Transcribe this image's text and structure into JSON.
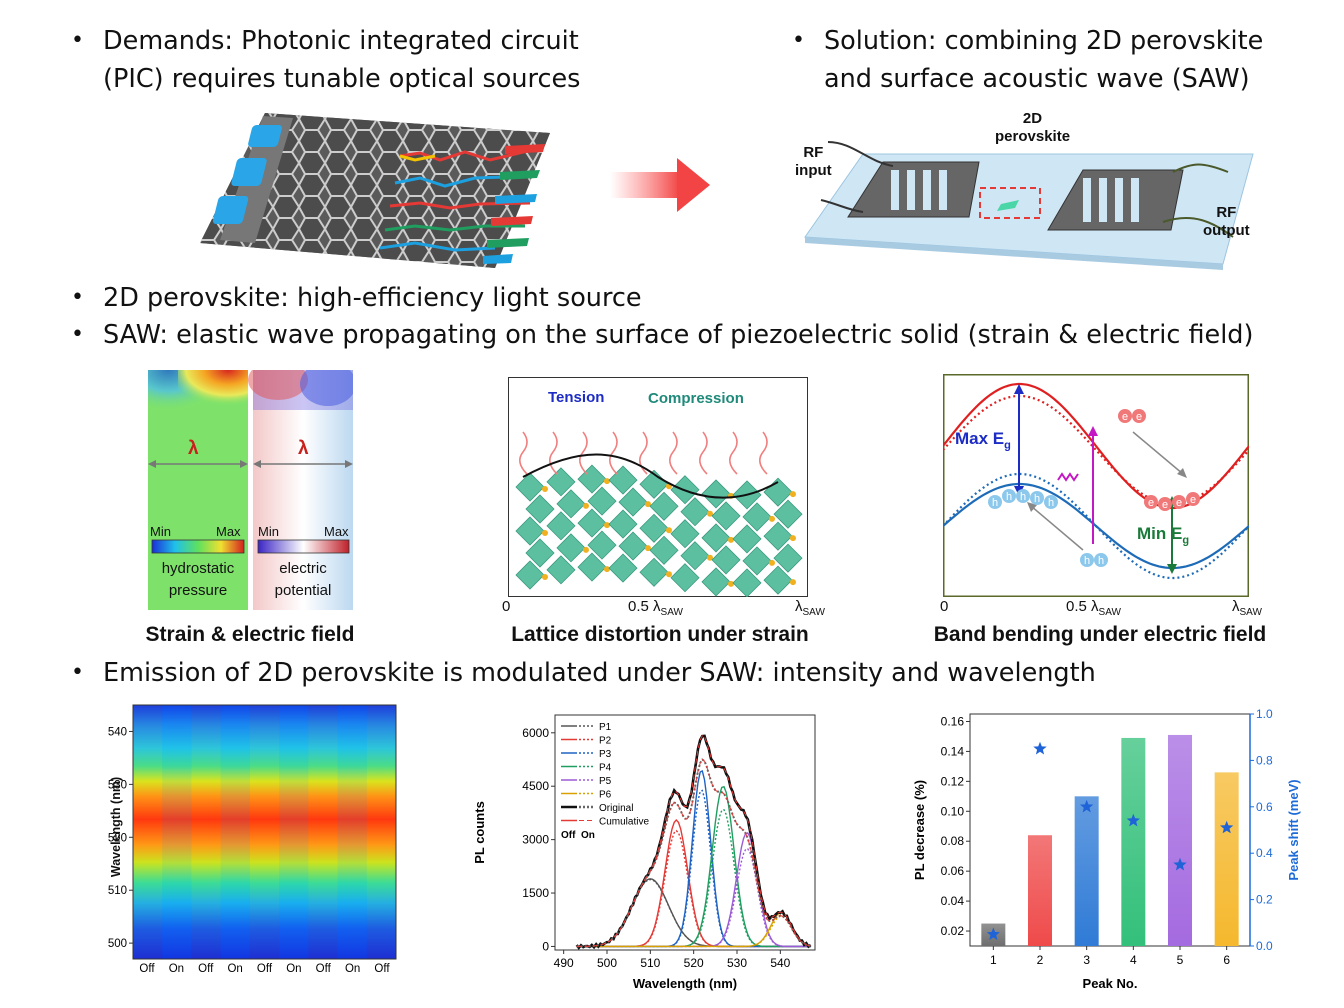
{
  "bullets": {
    "demands": [
      "Demands: Photonic integrated circuit",
      "(PIC) requires tunable optical sources"
    ],
    "solution": [
      "Solution: combining 2D perovskite",
      "and surface acoustic wave (SAW)"
    ],
    "perovskite": "2D perovskite: high-efficiency light source",
    "saw": "SAW: elastic wave propagating on the surface of piezoelectric solid (strain & electric field)",
    "emission": "Emission of 2D perovskite is modulated under SAW: intensity and wavelength",
    "symbol": "•"
  },
  "device": {
    "rf_input": [
      "RF",
      "input"
    ],
    "perovskite": [
      "2D",
      "perovskite"
    ],
    "rf_output": [
      "RF",
      "output"
    ]
  },
  "strain_panel": {
    "lambda": "λ",
    "left_scale": {
      "min": "Min",
      "max": "Max",
      "label": [
        "hydrostatic",
        "pressure"
      ]
    },
    "right_scale": {
      "min": "Min",
      "max": "Max",
      "label": [
        "electric",
        "potential"
      ]
    },
    "caption": "Strain & electric field"
  },
  "lattice_panel": {
    "tension": "Tension",
    "compression": "Compression",
    "ticks": [
      "0",
      "0.5 λ",
      "λ"
    ],
    "tick_sub": "SAW",
    "caption": "Lattice distortion under strain"
  },
  "band_panel": {
    "max_eg": "Max E",
    "min_eg": "Min E",
    "g": "g",
    "electron": "e",
    "hole": "h",
    "ticks": [
      "0",
      "0.5 λ",
      "λ"
    ],
    "tick_sub": "SAW",
    "caption": "Band bending under electric field"
  },
  "heatmap": {
    "ylabel": "Wavelength (nm)",
    "yticks": [
      "540",
      "530",
      "520",
      "510",
      "500"
    ],
    "xticks": [
      "Off",
      "On",
      "Off",
      "On",
      "Off",
      "On",
      "Off",
      "On",
      "Off"
    ]
  },
  "chart_data": [
    {
      "type": "line",
      "xlabel": "Wavelength (nm)",
      "ylabel": "PL counts",
      "xlim": [
        488,
        548
      ],
      "ylim": [
        -100,
        6500
      ],
      "xticks": [
        490,
        500,
        510,
        520,
        530,
        540
      ],
      "yticks": [
        0,
        1500,
        3000,
        4500,
        6000
      ],
      "legend_placement": "top-left",
      "legend": [
        "P1",
        "P2",
        "P3",
        "P4",
        "P5",
        "P6",
        "Original",
        "Cumulative"
      ],
      "legend_note": [
        "Off",
        "On"
      ],
      "series": [
        {
          "name": "P1",
          "color": "#555555",
          "center": 510,
          "width": 4.2,
          "amp_off": 1900,
          "amp_on": 1880
        },
        {
          "name": "P2",
          "color": "#e53935",
          "center": 516,
          "width": 2.6,
          "amp_off": 3550,
          "amp_on": 3250
        },
        {
          "name": "P3",
          "color": "#1e63c4",
          "center": 521.8,
          "width": 2.1,
          "amp_off": 4950,
          "amp_on": 4400
        },
        {
          "name": "P4",
          "color": "#1f9e60",
          "center": 526.8,
          "width": 2.5,
          "amp_off": 4500,
          "amp_on": 3850
        },
        {
          "name": "P5",
          "color": "#9c5bd6",
          "center": 532.3,
          "width": 2.4,
          "amp_off": 3200,
          "amp_on": 2750
        },
        {
          "name": "P6",
          "color": "#d8a000",
          "center": 540.2,
          "width": 2.4,
          "amp_off": 950,
          "amp_on": 850
        }
      ],
      "original": {
        "off_peak": 6200,
        "on_peak": 5550
      }
    },
    {
      "type": "bar",
      "xlabel": "Peak No.",
      "ylabel": "PL decrease (%)",
      "ylabel_right": "Peak shift (meV)",
      "categories": [
        "1",
        "2",
        "3",
        "4",
        "5",
        "6"
      ],
      "ylim": [
        0.01,
        0.165
      ],
      "ylim_right": [
        0,
        1.0
      ],
      "yticks": [
        "0.02",
        "0.04",
        "0.06",
        "0.08",
        "0.10",
        "0.12",
        "0.14",
        "0.16"
      ],
      "yticks_right": [
        "0.0",
        "0.2",
        "0.4",
        "0.6",
        "0.8",
        "1.0"
      ],
      "bar_values": [
        0.025,
        0.084,
        0.11,
        0.149,
        0.151,
        0.126
      ],
      "shift_values": [
        0.05,
        0.85,
        0.6,
        0.54,
        0.35,
        0.51
      ],
      "bar_colors": [
        "#6e6e6e",
        "#ef4a4a",
        "#2f7bd6",
        "#33c07a",
        "#a46ae0",
        "#f5b82e"
      ]
    }
  ]
}
